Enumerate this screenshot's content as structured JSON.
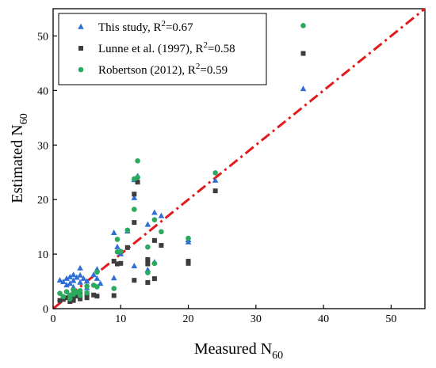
{
  "chart_data": {
    "type": "scatter",
    "title": "",
    "xlabel": {
      "main": "Measured N",
      "sub": "60"
    },
    "ylabel": {
      "main": "Estimated N",
      "sub": "60"
    },
    "xlim": [
      0,
      55
    ],
    "ylim": [
      0,
      55
    ],
    "xticks": [
      0,
      10,
      20,
      30,
      40,
      50
    ],
    "yticks": [
      0,
      10,
      20,
      30,
      40,
      50
    ],
    "grid": false,
    "legend_position": "top-left",
    "reference_line": {
      "type": "1:1",
      "color": "#e31a1c",
      "style": "dash-dot"
    },
    "series": [
      {
        "name": "This study, R",
        "name_sup": "2",
        "name_tail": "=0.67",
        "marker": "triangle",
        "color": "#2f6fd6",
        "points": [
          [
            1,
            5.2
          ],
          [
            1.5,
            4.9
          ],
          [
            2,
            5.5
          ],
          [
            2,
            4.3
          ],
          [
            2.5,
            5.8
          ],
          [
            2.5,
            4.6
          ],
          [
            3,
            6.2
          ],
          [
            3,
            5.1
          ],
          [
            3,
            3.9
          ],
          [
            3.5,
            5.7
          ],
          [
            4,
            7.4
          ],
          [
            4,
            6.1
          ],
          [
            4,
            4.8
          ],
          [
            4.5,
            5.5
          ],
          [
            5,
            5.0
          ],
          [
            5,
            3.8
          ],
          [
            6,
            6.2
          ],
          [
            6.5,
            7.2
          ],
          [
            6.5,
            5.5
          ],
          [
            7,
            4.6
          ],
          [
            9,
            13.9
          ],
          [
            9.5,
            11.3
          ],
          [
            9,
            5.6
          ],
          [
            10,
            10.0
          ],
          [
            11,
            14.2
          ],
          [
            12,
            20.3
          ],
          [
            12,
            7.8
          ],
          [
            12.5,
            24.3
          ],
          [
            12,
            23.6
          ],
          [
            14,
            15.4
          ],
          [
            14,
            7.1
          ],
          [
            15,
            17.6
          ],
          [
            15,
            8.5
          ],
          [
            16,
            17.0
          ],
          [
            20,
            12.6
          ],
          [
            20,
            12.2
          ],
          [
            24,
            23.5
          ],
          [
            37,
            40.3
          ]
        ]
      },
      {
        "name": "Lunne et al. (1997), R",
        "name_sup": "2",
        "name_tail": "=0.58",
        "marker": "square",
        "color": "#3d3d3d",
        "points": [
          [
            1,
            1.5
          ],
          [
            1.5,
            1.7
          ],
          [
            2,
            2.0
          ],
          [
            2.5,
            1.3
          ],
          [
            2.5,
            2.3
          ],
          [
            3,
            1.5
          ],
          [
            3,
            2.0
          ],
          [
            3.5,
            2.3
          ],
          [
            4,
            1.8
          ],
          [
            4,
            2.6
          ],
          [
            5,
            2.0
          ],
          [
            5,
            2.8
          ],
          [
            6,
            2.5
          ],
          [
            6.5,
            2.3
          ],
          [
            9,
            2.4
          ],
          [
            9,
            8.7
          ],
          [
            9.5,
            8.2
          ],
          [
            10,
            8.3
          ],
          [
            11,
            11.2
          ],
          [
            12,
            5.2
          ],
          [
            12,
            15.8
          ],
          [
            12,
            21.0
          ],
          [
            12.5,
            23.2
          ],
          [
            14,
            4.8
          ],
          [
            14,
            9.0
          ],
          [
            14,
            8.2
          ],
          [
            15,
            5.5
          ],
          [
            15,
            12.5
          ],
          [
            16,
            11.6
          ],
          [
            20,
            8.7
          ],
          [
            20,
            8.3
          ],
          [
            24,
            21.6
          ],
          [
            37,
            46.8
          ]
        ]
      },
      {
        "name": "Robertson (2012), R",
        "name_sup": "2",
        "name_tail": "=0.59",
        "marker": "circle",
        "color": "#2aaa5c",
        "points": [
          [
            1,
            2.8
          ],
          [
            1.5,
            2.2
          ],
          [
            2,
            3.1
          ],
          [
            2.5,
            2.5
          ],
          [
            2.5,
            1.8
          ],
          [
            3,
            3.4
          ],
          [
            3,
            2.6
          ],
          [
            3.5,
            3.0
          ],
          [
            4,
            2.4
          ],
          [
            4,
            3.3
          ],
          [
            5,
            2.9
          ],
          [
            5,
            4.1
          ],
          [
            6,
            4.3
          ],
          [
            6.5,
            6.7
          ],
          [
            6.5,
            4.0
          ],
          [
            9,
            3.7
          ],
          [
            9.5,
            12.7
          ],
          [
            9.5,
            10.4
          ],
          [
            10,
            10.5
          ],
          [
            11,
            14.4
          ],
          [
            12,
            18.2
          ],
          [
            12,
            23.8
          ],
          [
            12.5,
            27.1
          ],
          [
            12.5,
            24.1
          ],
          [
            14,
            11.3
          ],
          [
            14,
            6.6
          ],
          [
            15,
            8.3
          ],
          [
            15,
            16.3
          ],
          [
            16,
            14.1
          ],
          [
            20,
            12.9
          ],
          [
            24,
            24.9
          ],
          [
            37,
            51.9
          ]
        ]
      }
    ]
  }
}
